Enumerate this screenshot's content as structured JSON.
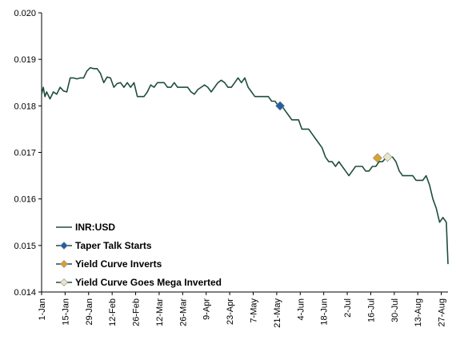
{
  "chart_data": {
    "type": "line",
    "title": "",
    "xlabel": "",
    "ylabel": "",
    "ylim": [
      0.014,
      0.02
    ],
    "y_ticks": [
      "0.014",
      "0.015",
      "0.016",
      "0.017",
      "0.018",
      "0.019",
      "0.020"
    ],
    "x_ticks": [
      "1-Jan",
      "15-Jan",
      "29-Jan",
      "12-Feb",
      "26-Feb",
      "12-Mar",
      "26-Mar",
      "9-Apr",
      "23-Apr",
      "7-May",
      "21-May",
      "4-Jun",
      "18-Jun",
      "2-Jul",
      "16-Jul",
      "30-Jul",
      "13-Aug",
      "27-Aug"
    ],
    "x_day_range": [
      1,
      243
    ],
    "grid": false,
    "legend_position": "lower-left",
    "series": [
      {
        "name": "INR:USD",
        "color": "#1f4e3d",
        "points": [
          [
            1,
            0.01825
          ],
          [
            2,
            0.0184
          ],
          [
            3,
            0.0182
          ],
          [
            4,
            0.0183
          ],
          [
            6,
            0.01815
          ],
          [
            8,
            0.0183
          ],
          [
            10,
            0.01825
          ],
          [
            12,
            0.0184
          ],
          [
            14,
            0.01832
          ],
          [
            16,
            0.0183
          ],
          [
            18,
            0.0186
          ],
          [
            20,
            0.0186
          ],
          [
            22,
            0.01858
          ],
          [
            24,
            0.0186
          ],
          [
            26,
            0.0186
          ],
          [
            28,
            0.01875
          ],
          [
            30,
            0.01882
          ],
          [
            32,
            0.0188
          ],
          [
            34,
            0.0188
          ],
          [
            36,
            0.0187
          ],
          [
            38,
            0.0185
          ],
          [
            40,
            0.01862
          ],
          [
            42,
            0.0186
          ],
          [
            44,
            0.0184
          ],
          [
            46,
            0.01848
          ],
          [
            48,
            0.0185
          ],
          [
            50,
            0.0184
          ],
          [
            52,
            0.0185
          ],
          [
            54,
            0.0184
          ],
          [
            56,
            0.0185
          ],
          [
            58,
            0.0182
          ],
          [
            60,
            0.0182
          ],
          [
            62,
            0.0182
          ],
          [
            64,
            0.0183
          ],
          [
            66,
            0.01845
          ],
          [
            68,
            0.0184
          ],
          [
            70,
            0.0185
          ],
          [
            72,
            0.0185
          ],
          [
            74,
            0.0185
          ],
          [
            76,
            0.0184
          ],
          [
            78,
            0.0184
          ],
          [
            80,
            0.0185
          ],
          [
            82,
            0.0184
          ],
          [
            84,
            0.0184
          ],
          [
            86,
            0.0184
          ],
          [
            88,
            0.0184
          ],
          [
            90,
            0.0183
          ],
          [
            92,
            0.01825
          ],
          [
            94,
            0.01835
          ],
          [
            96,
            0.0184
          ],
          [
            98,
            0.01845
          ],
          [
            100,
            0.0184
          ],
          [
            102,
            0.0183
          ],
          [
            104,
            0.0184
          ],
          [
            106,
            0.0185
          ],
          [
            108,
            0.01855
          ],
          [
            110,
            0.0185
          ],
          [
            112,
            0.0184
          ],
          [
            114,
            0.0184
          ],
          [
            116,
            0.0185
          ],
          [
            118,
            0.0186
          ],
          [
            120,
            0.0185
          ],
          [
            122,
            0.0186
          ],
          [
            124,
            0.0184
          ],
          [
            126,
            0.0183
          ],
          [
            128,
            0.0182
          ],
          [
            130,
            0.0182
          ],
          [
            132,
            0.0182
          ],
          [
            134,
            0.0182
          ],
          [
            136,
            0.0182
          ],
          [
            138,
            0.0181
          ],
          [
            140,
            0.0181
          ],
          [
            142,
            0.018
          ],
          [
            144,
            0.018
          ],
          [
            146,
            0.0179
          ],
          [
            148,
            0.0178
          ],
          [
            150,
            0.0177
          ],
          [
            152,
            0.0177
          ],
          [
            154,
            0.0177
          ],
          [
            156,
            0.0175
          ],
          [
            158,
            0.0175
          ],
          [
            160,
            0.0175
          ],
          [
            162,
            0.0174
          ],
          [
            164,
            0.0173
          ],
          [
            166,
            0.0172
          ],
          [
            168,
            0.0171
          ],
          [
            170,
            0.0169
          ],
          [
            172,
            0.0168
          ],
          [
            174,
            0.0168
          ],
          [
            176,
            0.0167
          ],
          [
            178,
            0.0168
          ],
          [
            180,
            0.0167
          ],
          [
            182,
            0.0166
          ],
          [
            184,
            0.0165
          ],
          [
            186,
            0.0166
          ],
          [
            188,
            0.0167
          ],
          [
            190,
            0.0167
          ],
          [
            192,
            0.0167
          ],
          [
            194,
            0.0166
          ],
          [
            196,
            0.0166
          ],
          [
            198,
            0.0167
          ],
          [
            200,
            0.0167
          ],
          [
            202,
            0.0168
          ],
          [
            204,
            0.0168
          ],
          [
            206,
            0.01688
          ],
          [
            208,
            0.0169
          ],
          [
            210,
            0.0169
          ],
          [
            212,
            0.0168
          ],
          [
            214,
            0.0166
          ],
          [
            216,
            0.0165
          ],
          [
            218,
            0.0165
          ],
          [
            220,
            0.0165
          ],
          [
            222,
            0.0165
          ],
          [
            224,
            0.0164
          ],
          [
            226,
            0.0164
          ],
          [
            228,
            0.0164
          ],
          [
            230,
            0.0165
          ],
          [
            232,
            0.0163
          ],
          [
            234,
            0.016
          ],
          [
            236,
            0.0158
          ],
          [
            238,
            0.0155
          ],
          [
            240,
            0.0156
          ],
          [
            242,
            0.0155
          ],
          [
            243,
            0.0146
          ]
        ]
      },
      {
        "name": "Taper Talk Starts",
        "color": "#1f5fa8",
        "marker": "diamond",
        "points": [
          [
            143,
            0.018
          ]
        ]
      },
      {
        "name": "Yield Curve Inverts",
        "color": "#e0a12a",
        "marker": "diamond",
        "points": [
          [
            201,
            0.01688
          ]
        ]
      },
      {
        "name": "Yield Curve Goes Mega Inverted",
        "color": "#e8e8c8",
        "marker": "diamond",
        "points": [
          [
            207,
            0.0169
          ]
        ]
      }
    ]
  }
}
